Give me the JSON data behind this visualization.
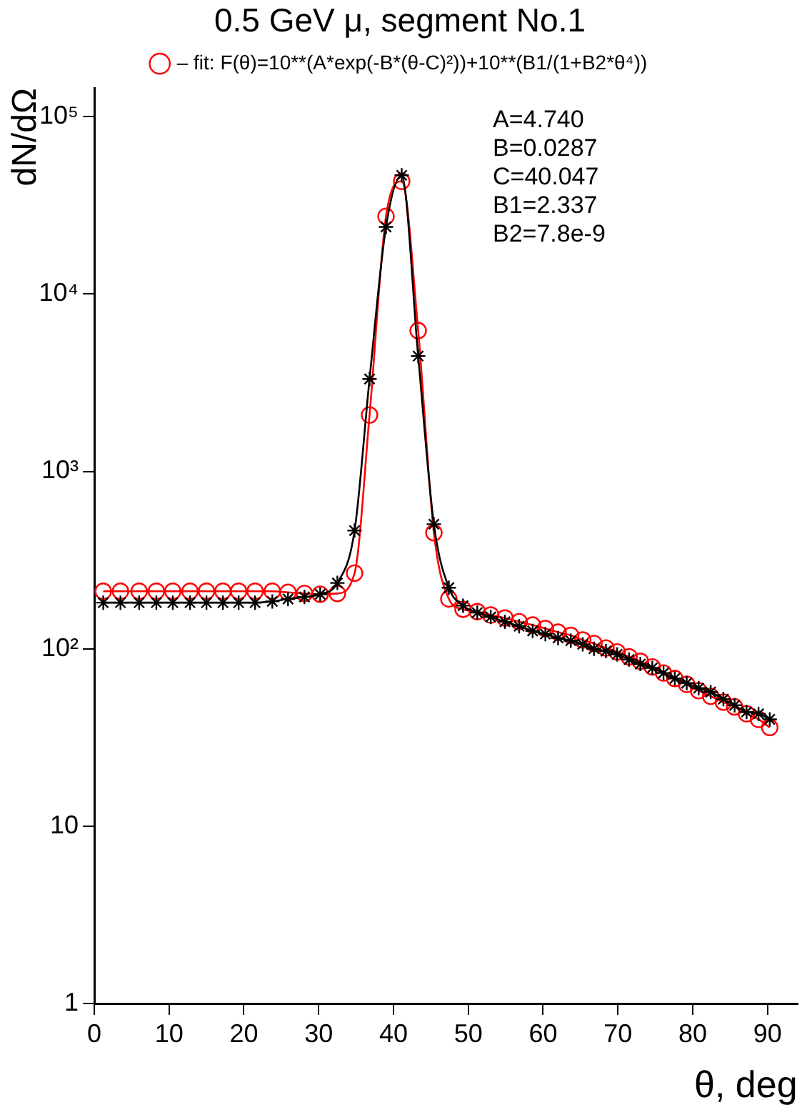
{
  "chart_data": {
    "type": "line",
    "title": "0.5 GeV μ, segment No.1",
    "xlabel": "θ, deg",
    "ylabel": "dN/dΩ",
    "log": "y",
    "xlim": [
      0,
      94
    ],
    "xticks": [
      0,
      10,
      20,
      30,
      40,
      50,
      60,
      70,
      80,
      90
    ],
    "ylim": [
      1,
      145000
    ],
    "yticks": [
      1,
      10,
      {
        "value": 100,
        "label": "10²"
      },
      {
        "value": 1000,
        "label": "10³"
      },
      {
        "value": 10000,
        "label": "10⁴"
      },
      {
        "value": 100000,
        "label": "10⁵"
      }
    ],
    "grid": false,
    "legend": "top",
    "annotations": [
      "A=4.740",
      "B=0.0287",
      "C=40.047",
      "B1=2.337",
      "B2=7.8e-9"
    ],
    "series": [
      {
        "color": "#000000",
        "marker": "cross",
        "x": [
          1.2,
          3.5,
          6.0,
          8.3,
          10.5,
          12.8,
          15.0,
          17.2,
          19.3,
          21.5,
          23.8,
          25.9,
          28.1,
          30.2,
          32.5,
          34.8,
          36.8,
          39.0,
          41.1,
          43.3,
          45.4,
          47.4,
          49.3,
          51.2,
          53.0,
          54.9,
          56.8,
          58.6,
          60.3,
          62.0,
          63.7,
          65.3,
          66.8,
          68.4,
          69.9,
          71.5,
          73.0,
          74.6,
          76.1,
          77.6,
          79.2,
          80.8,
          82.4,
          84.1,
          85.6,
          87.2,
          88.8,
          90.3
        ],
        "values": [
          182,
          182,
          182,
          182,
          182,
          182,
          182,
          182,
          182,
          182,
          185,
          191,
          196,
          203,
          235,
          464,
          3320,
          23900,
          46700,
          4470,
          504,
          221,
          175,
          160,
          151,
          142,
          134,
          126,
          121,
          115,
          111,
          106,
          100,
          97,
          93,
          87,
          82,
          78,
          73,
          68,
          64,
          60,
          57,
          52,
          48,
          44,
          43,
          40
        ]
      },
      {
        "name": "– fit: F(θ)=10**(A*exp(-B*(θ-C)²))+10**(B1/(1+B2*θ⁴))",
        "color": "#ff0000",
        "marker": "circle",
        "x": [
          1.2,
          3.5,
          6.0,
          8.3,
          10.5,
          12.8,
          15.0,
          17.2,
          19.3,
          21.5,
          23.8,
          25.9,
          28.1,
          30.2,
          32.5,
          34.8,
          36.8,
          39.0,
          41.1,
          43.3,
          45.4,
          47.4,
          49.3,
          51.2,
          53.0,
          54.9,
          56.8,
          58.6,
          60.3,
          62.0,
          63.7,
          65.3,
          66.8,
          68.4,
          69.9,
          71.5,
          73.0,
          74.6,
          76.1,
          77.6,
          79.2,
          80.8,
          82.4,
          84.1,
          85.6,
          87.2,
          88.8,
          90.3
        ],
        "values": [
          211,
          211,
          211,
          211,
          211,
          211,
          211,
          211,
          211,
          211,
          211,
          208,
          205,
          203,
          205,
          267,
          2080,
          27400,
          43200,
          6220,
          451,
          191,
          167,
          162,
          155,
          149,
          142,
          136,
          130,
          124,
          119,
          112,
          107,
          101,
          96,
          90,
          85,
          79,
          73,
          68,
          63,
          58,
          54,
          50,
          47,
          43,
          40,
          36
        ]
      }
    ]
  }
}
